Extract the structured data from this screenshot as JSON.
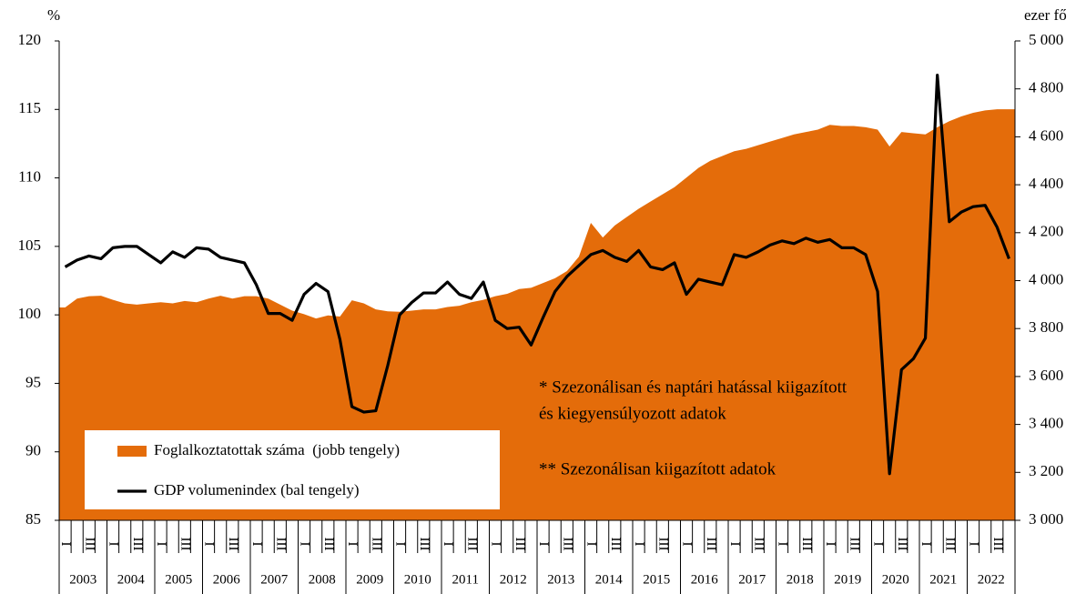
{
  "chart_data": {
    "type": "area-line",
    "y_label": "%",
    "y2_label": "ezer fő",
    "categories": [
      "I",
      null,
      "III",
      null,
      "I",
      null,
      "III",
      null,
      "I",
      null,
      "III",
      null,
      "I",
      null,
      "III",
      null,
      "I",
      null,
      "III",
      null,
      "I",
      null,
      "III",
      null,
      "I",
      null,
      "III",
      null,
      "I",
      null,
      "III",
      null,
      "I",
      null,
      "III",
      null,
      "I",
      null,
      "III",
      null,
      "I",
      null,
      "III",
      null,
      "I",
      null,
      "III",
      null,
      "I",
      null,
      "III",
      null,
      "I",
      null,
      "III",
      null,
      "I",
      null,
      "III",
      null,
      "I",
      null,
      "III",
      null,
      "I",
      null,
      "III",
      null,
      "I",
      null,
      "III",
      null,
      "I",
      null,
      "III",
      null,
      "I",
      null,
      "III",
      null
    ],
    "years": [
      "2003",
      "2004",
      "2005",
      "2006",
      "2007",
      "2008",
      "2009",
      "2010",
      "2011",
      "2012",
      "2013",
      "2014",
      "2015",
      "2016",
      "2017",
      "2018",
      "2019",
      "2020",
      "2021",
      "2022"
    ],
    "series": [
      {
        "name": "Foglalkoztatottak száma  (jobb tengely)",
        "type": "area",
        "axis": "y2",
        "color": "#e46c0a",
        "values": [
          3888,
          3925,
          3935,
          3937,
          3920,
          3905,
          3900,
          3905,
          3910,
          3905,
          3915,
          3910,
          3925,
          3937,
          3925,
          3935,
          3935,
          3925,
          3900,
          3875,
          3860,
          3842,
          3855,
          3850,
          3918,
          3905,
          3880,
          3872,
          3870,
          3875,
          3880,
          3880,
          3890,
          3895,
          3910,
          3920,
          3935,
          3945,
          3965,
          3970,
          3990,
          4010,
          4040,
          4100,
          4241,
          4180,
          4230,
          4265,
          4300,
          4330,
          4360,
          4390,
          4430,
          4470,
          4500,
          4520,
          4540,
          4550,
          4565,
          4580,
          4595,
          4610,
          4620,
          4630,
          4650,
          4645,
          4645,
          4640,
          4630,
          4560,
          4620,
          4615,
          4610,
          4640,
          4665,
          4685,
          4700,
          4710,
          4715,
          4715
        ]
      },
      {
        "name": "GDP volumenindex (bal tengely)",
        "type": "line",
        "axis": "y",
        "color": "#000000",
        "values": [
          103.5,
          104.0,
          104.3,
          104.1,
          104.9,
          105.0,
          105.0,
          104.4,
          103.8,
          104.6,
          104.2,
          104.9,
          104.8,
          104.2,
          104.0,
          103.8,
          102.2,
          100.1,
          100.1,
          99.6,
          101.5,
          102.3,
          101.7,
          98.2,
          93.3,
          92.9,
          93.0,
          96.3,
          100.0,
          100.9,
          101.6,
          101.6,
          102.4,
          101.5,
          101.2,
          102.4,
          99.6,
          99.0,
          99.1,
          97.8,
          99.8,
          101.7,
          102.8,
          103.6,
          104.4,
          104.7,
          104.2,
          103.9,
          104.7,
          103.5,
          103.3,
          103.8,
          101.5,
          102.6,
          102.4,
          102.2,
          104.4,
          104.2,
          104.6,
          105.1,
          105.4,
          105.2,
          105.6,
          105.3,
          105.5,
          104.9,
          104.9,
          104.4,
          101.7,
          88.4,
          96.0,
          96.8,
          98.3,
          117.5,
          106.8,
          107.5,
          107.9,
          108.0,
          106.4,
          104.1
        ]
      }
    ],
    "ylim": [
      85,
      120
    ],
    "yticks": [
      85,
      90,
      95,
      100,
      105,
      110,
      115,
      120
    ],
    "y2lim": [
      3000,
      5000
    ],
    "y2ticks": [
      {
        "value": 3000,
        "label": "3 000"
      },
      {
        "value": 3200,
        "label": "3 200"
      },
      {
        "value": 3400,
        "label": "3 400"
      },
      {
        "value": 3600,
        "label": "3 600"
      },
      {
        "value": 3800,
        "label": "3 800"
      },
      {
        "value": 4000,
        "label": "4 000"
      },
      {
        "value": 4200,
        "label": "4 200"
      },
      {
        "value": 4400,
        "label": "4 400"
      },
      {
        "value": 4600,
        "label": "4 600"
      },
      {
        "value": 4800,
        "label": "4 800"
      },
      {
        "value": 5000,
        "label": "5 000"
      }
    ],
    "legend": "lower left",
    "annotations": [
      "* Szezonálisan és naptári hatással kiigazított",
      "és kiegyensúlyozott adatok",
      "** Szezonálisan kiigazított adatok"
    ]
  }
}
